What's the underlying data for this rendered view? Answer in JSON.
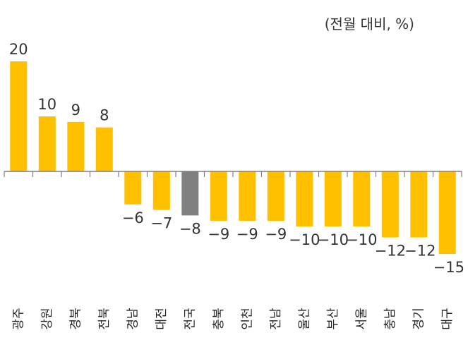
{
  "chart_data": {
    "type": "bar",
    "unit_label": "(전월 대비, %)",
    "categories": [
      "광주",
      "강원",
      "경북",
      "전북",
      "경남",
      "대전",
      "전국",
      "충북",
      "인천",
      "전남",
      "울산",
      "부산",
      "서울",
      "충남",
      "경기",
      "대구"
    ],
    "values": [
      20,
      10,
      9,
      8,
      -6,
      -7,
      -8,
      -9,
      -9,
      -9,
      -10,
      -10,
      -10,
      -12,
      -12,
      -15
    ],
    "value_labels": [
      "20",
      "10",
      "9",
      "8",
      "−6",
      "−7",
      "−8",
      "−9",
      "−9",
      "−9",
      "−10",
      "−10",
      "−10",
      "−12",
      "−12",
      "−15"
    ],
    "highlight_category": "전국",
    "colors": {
      "bar": "#FFC000",
      "highlight": "#808080",
      "axis": "#7F7F7F"
    },
    "ylim": [
      -20,
      20
    ],
    "title": "",
    "xlabel": "",
    "ylabel": ""
  }
}
